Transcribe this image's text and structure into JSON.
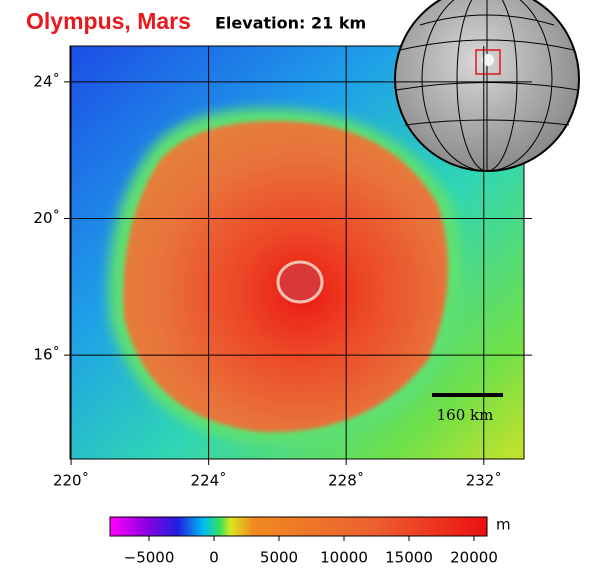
{
  "header": {
    "title": "Olympus, Mars",
    "subtitle": "Elevation: 21 km"
  },
  "map": {
    "lon_range": [
      219.97,
      233.17
    ],
    "lat_range": [
      12.96,
      25.05
    ],
    "lon_ticks": [
      {
        "value": 220,
        "label": "220˚"
      },
      {
        "value": 224,
        "label": "224˚"
      },
      {
        "value": 228,
        "label": "228˚"
      },
      {
        "value": 232,
        "label": "232˚"
      }
    ],
    "lat_ticks": [
      {
        "value": 24,
        "label": "24˚"
      },
      {
        "value": 20,
        "label": "20˚"
      },
      {
        "value": 16,
        "label": "16˚"
      }
    ],
    "scale_bar": {
      "label": "160 km"
    }
  },
  "colorbar": {
    "range": [
      -8000,
      21000
    ],
    "unit": "m",
    "ticks": [
      {
        "value": -5000,
        "label": "−5000"
      },
      0,
      5000,
      10000,
      15000,
      20000
    ]
  }
}
